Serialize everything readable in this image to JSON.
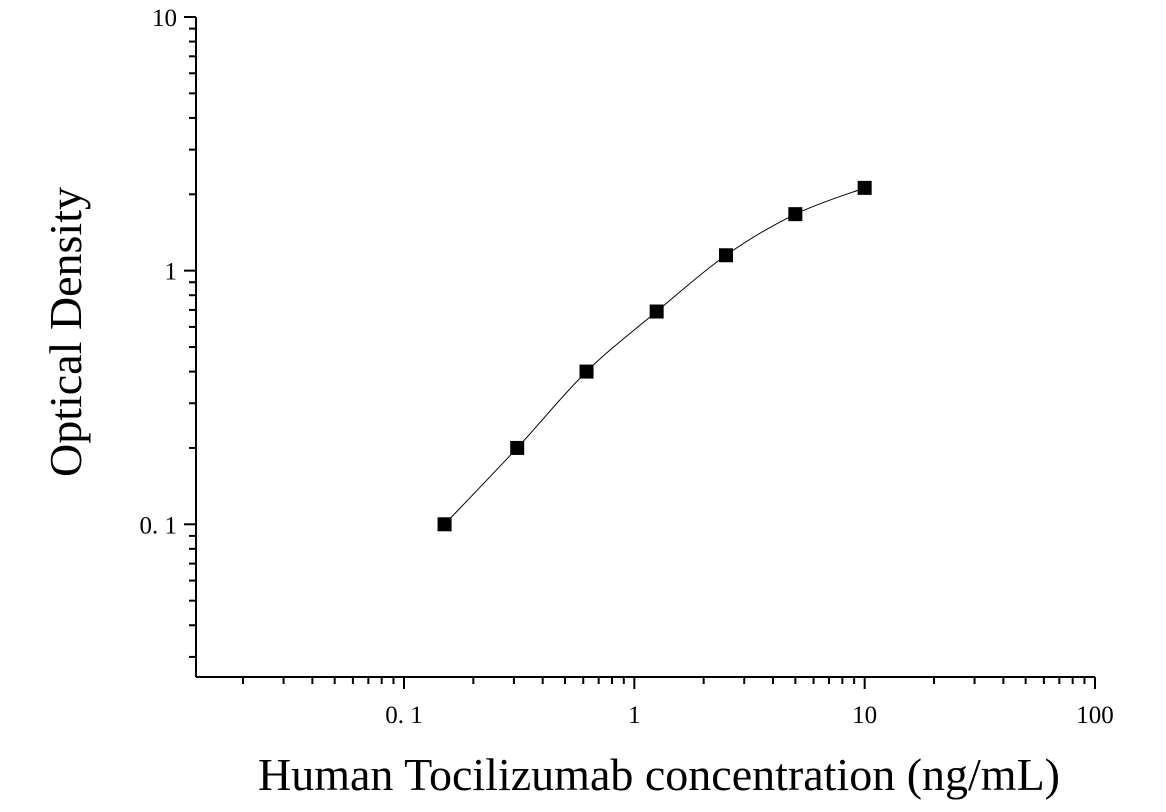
{
  "chart_data": {
    "type": "scatter",
    "title": "",
    "xlabel": "Human Tocilizumab concentration (ng/mL)",
    "ylabel": "Optical Density",
    "xscale": "log",
    "yscale": "log",
    "xlim": [
      0.0125,
      100
    ],
    "ylim": [
      0.025,
      10
    ],
    "x_ticks": [
      {
        "value": 0.1,
        "label": "0. 1"
      },
      {
        "value": 1,
        "label": "1"
      },
      {
        "value": 10,
        "label": "10"
      },
      {
        "value": 100,
        "label": "100"
      }
    ],
    "y_ticks": [
      {
        "value": 0.1,
        "label": "0. 1"
      },
      {
        "value": 1,
        "label": "1"
      },
      {
        "value": 10,
        "label": "10"
      }
    ],
    "grid": false,
    "legend": "none",
    "series": [
      {
        "marker": "square",
        "color": "#000000",
        "fit_line": true,
        "points": [
          {
            "x": 0.15,
            "y": 0.1
          },
          {
            "x": 0.31,
            "y": 0.2
          },
          {
            "x": 0.62,
            "y": 0.4
          },
          {
            "x": 1.25,
            "y": 0.69
          },
          {
            "x": 2.5,
            "y": 1.15
          },
          {
            "x": 5,
            "y": 1.67
          },
          {
            "x": 10,
            "y": 2.12
          }
        ]
      }
    ]
  }
}
